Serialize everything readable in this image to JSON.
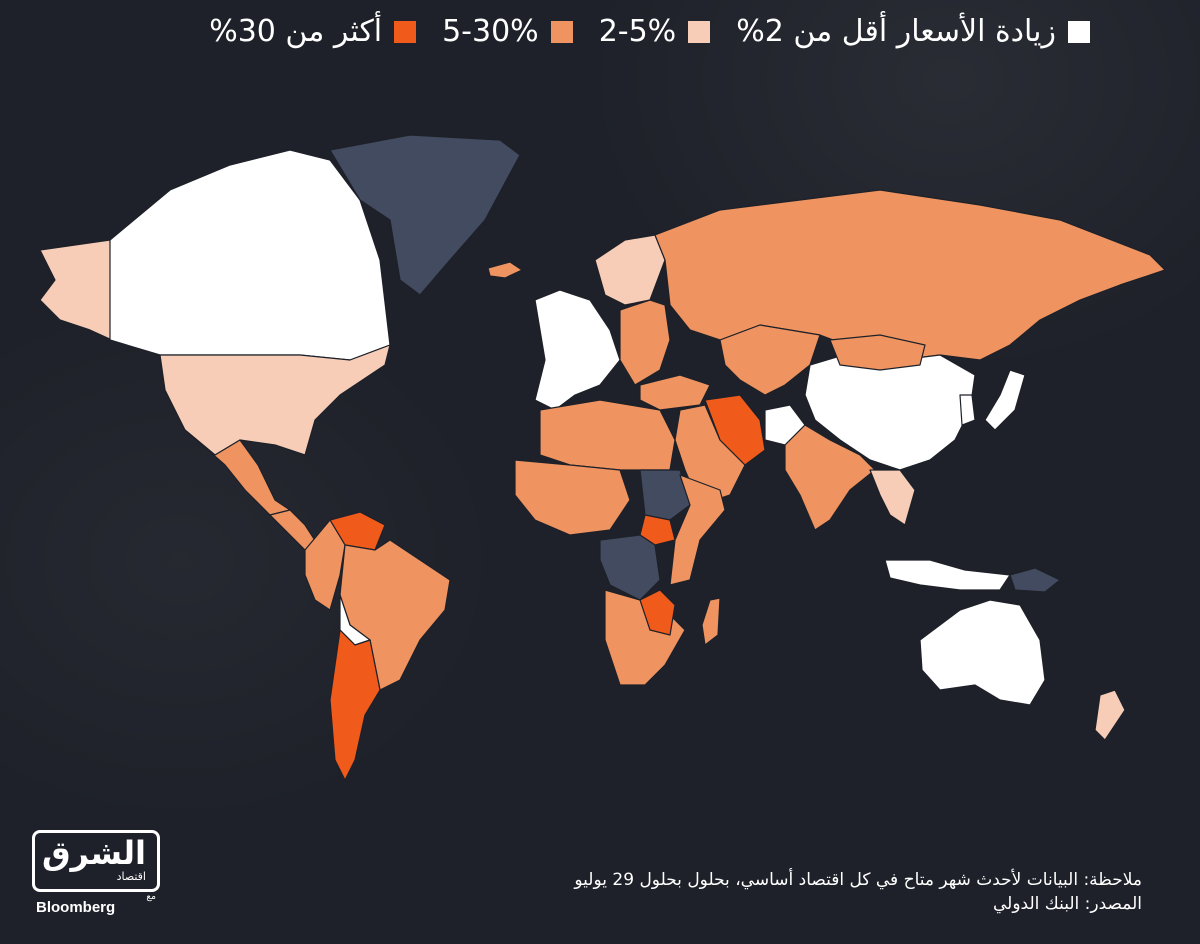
{
  "legend": {
    "items": [
      {
        "label": "زيادة الأسعار أقل من 2%",
        "color": "#ffffff"
      },
      {
        "label": "2-5%",
        "color": "#f7cdb8"
      },
      {
        "label": "5-30%",
        "color": "#ef9460"
      },
      {
        "label": "أكثر من 30%",
        "color": "#f05a1a"
      }
    ]
  },
  "colors": {
    "background": "#1e2129",
    "no_data": "#424b60",
    "border": "#1e2129"
  },
  "regions": [
    {
      "name": "alaska",
      "category": 1
    },
    {
      "name": "canada",
      "category": 0
    },
    {
      "name": "greenland",
      "category": -1
    },
    {
      "name": "iceland",
      "category": 2
    },
    {
      "name": "usa",
      "category": 1
    },
    {
      "name": "mexico",
      "category": 2
    },
    {
      "name": "central-america",
      "category": 2
    },
    {
      "name": "venezuela",
      "category": 3
    },
    {
      "name": "south-america-north",
      "category": 2
    },
    {
      "name": "brazil",
      "category": 2
    },
    {
      "name": "bolivia",
      "category": 0
    },
    {
      "name": "argentina",
      "category": 3
    },
    {
      "name": "western-europe",
      "category": 0
    },
    {
      "name": "scandinavia",
      "category": 1
    },
    {
      "name": "eastern-europe",
      "category": 2
    },
    {
      "name": "russia",
      "category": 2
    },
    {
      "name": "turkey",
      "category": 2
    },
    {
      "name": "middle-east",
      "category": 2
    },
    {
      "name": "iran",
      "category": 3
    },
    {
      "name": "central-asia",
      "category": 2
    },
    {
      "name": "afghanistan",
      "category": 0
    },
    {
      "name": "india",
      "category": 2
    },
    {
      "name": "china",
      "category": 0
    },
    {
      "name": "mongolia",
      "category": 2
    },
    {
      "name": "japan",
      "category": 0
    },
    {
      "name": "korea",
      "category": 0
    },
    {
      "name": "southeast-asia",
      "category": 1
    },
    {
      "name": "indonesia",
      "category": 0
    },
    {
      "name": "north-africa",
      "category": 2
    },
    {
      "name": "west-africa",
      "category": 2
    },
    {
      "name": "sudan",
      "category": -1
    },
    {
      "name": "south-sudan",
      "category": 3
    },
    {
      "name": "east-africa",
      "category": 2
    },
    {
      "name": "central-africa",
      "category": -1
    },
    {
      "name": "southern-africa",
      "category": 2
    },
    {
      "name": "zambia-zimbabwe",
      "category": 3
    },
    {
      "name": "madagascar",
      "category": 2
    },
    {
      "name": "australia",
      "category": 0
    },
    {
      "name": "new-zealand",
      "category": 1
    },
    {
      "name": "papua",
      "category": -1
    }
  ],
  "footnote": {
    "note": "ملاحظة: البيانات لأحدث شهر متاح في كل اقتصاد أساسي، بحلول بحلول 29 يوليو",
    "source": "المصدر: البنك الدولي"
  },
  "logo": {
    "brand": "الشرق",
    "sub": "اقتصاد",
    "with": "مع",
    "partner": "Bloomberg"
  }
}
